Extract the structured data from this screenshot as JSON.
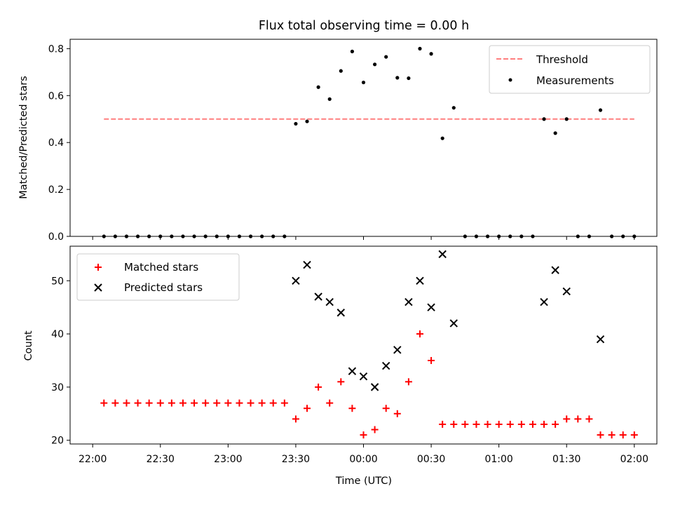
{
  "chart_data": [
    {
      "type": "scatter",
      "title": "Flux total observing time = 0.00 h",
      "ylabel": "Matched/Predicted stars",
      "xlabel": "",
      "ylim": [
        0,
        0.84
      ],
      "yticks": [
        0.0,
        0.2,
        0.4,
        0.6,
        0.8
      ],
      "yticklabels": [
        "0.0",
        "0.2",
        "0.4",
        "0.6",
        "0.8"
      ],
      "xlim_minutes_after_22_00": [
        -10,
        250
      ],
      "grid": false,
      "legend_placement": "top-right",
      "threshold": {
        "name": "Threshold",
        "value": 0.5,
        "x_start": "22:05",
        "x_end": "02:00",
        "color": "#ff7f7f"
      },
      "series": [
        {
          "name": "Measurements",
          "color": "#000000",
          "points": [
            [
              "22:05",
              0
            ],
            [
              "22:10",
              0
            ],
            [
              "22:15",
              0
            ],
            [
              "22:20",
              0
            ],
            [
              "22:25",
              0
            ],
            [
              "22:30",
              0
            ],
            [
              "22:35",
              0
            ],
            [
              "22:40",
              0
            ],
            [
              "22:45",
              0
            ],
            [
              "22:50",
              0
            ],
            [
              "22:55",
              0
            ],
            [
              "23:00",
              0
            ],
            [
              "23:05",
              0
            ],
            [
              "23:10",
              0
            ],
            [
              "23:15",
              0
            ],
            [
              "23:20",
              0
            ],
            [
              "23:25",
              0
            ],
            [
              "23:30",
              0.48
            ],
            [
              "23:35",
              0.49
            ],
            [
              "23:40",
              0.636
            ],
            [
              "23:45",
              0.585
            ],
            [
              "23:50",
              0.705
            ],
            [
              "23:55",
              0.788
            ],
            [
              "00:00",
              0.656
            ],
            [
              "00:05",
              0.733
            ],
            [
              "00:10",
              0.765
            ],
            [
              "00:15",
              0.676
            ],
            [
              "00:20",
              0.674
            ],
            [
              "00:25",
              0.8
            ],
            [
              "00:30",
              0.778
            ],
            [
              "00:35",
              0.418
            ],
            [
              "00:40",
              0.548
            ],
            [
              "00:45",
              0
            ],
            [
              "00:50",
              0
            ],
            [
              "00:55",
              0
            ],
            [
              "01:00",
              0
            ],
            [
              "01:05",
              0
            ],
            [
              "01:10",
              0
            ],
            [
              "01:15",
              0
            ],
            [
              "01:20",
              0.5
            ],
            [
              "01:25",
              0.44
            ],
            [
              "01:30",
              0.5
            ],
            [
              "01:35",
              0
            ],
            [
              "01:40",
              0
            ],
            [
              "01:45",
              0.538
            ],
            [
              "01:50",
              0
            ],
            [
              "01:55",
              0
            ],
            [
              "02:00",
              0
            ]
          ]
        }
      ]
    },
    {
      "type": "scatter",
      "title": "",
      "ylabel": "Count",
      "xlabel": "Time (UTC)",
      "ylim": [
        19.3,
        56.5
      ],
      "yticks": [
        20,
        30,
        40,
        50
      ],
      "yticklabels": [
        "20",
        "30",
        "40",
        "50"
      ],
      "xticks": [
        "22:00",
        "22:30",
        "23:00",
        "23:30",
        "00:00",
        "00:30",
        "01:00",
        "01:30",
        "02:00"
      ],
      "xlim_minutes_after_22_00": [
        -10,
        250
      ],
      "grid": false,
      "legend_placement": "top-left",
      "series": [
        {
          "name": "Matched stars",
          "marker": "plus",
          "color": "#ff0000",
          "points": [
            [
              "22:05",
              27
            ],
            [
              "22:10",
              27
            ],
            [
              "22:15",
              27
            ],
            [
              "22:20",
              27
            ],
            [
              "22:25",
              27
            ],
            [
              "22:30",
              27
            ],
            [
              "22:35",
              27
            ],
            [
              "22:40",
              27
            ],
            [
              "22:45",
              27
            ],
            [
              "22:50",
              27
            ],
            [
              "22:55",
              27
            ],
            [
              "23:00",
              27
            ],
            [
              "23:05",
              27
            ],
            [
              "23:10",
              27
            ],
            [
              "23:15",
              27
            ],
            [
              "23:20",
              27
            ],
            [
              "23:25",
              27
            ],
            [
              "23:30",
              24
            ],
            [
              "23:35",
              26
            ],
            [
              "23:40",
              30
            ],
            [
              "23:45",
              27
            ],
            [
              "23:50",
              31
            ],
            [
              "23:55",
              26
            ],
            [
              "00:00",
              21
            ],
            [
              "00:05",
              22
            ],
            [
              "00:10",
              26
            ],
            [
              "00:15",
              25
            ],
            [
              "00:20",
              31
            ],
            [
              "00:25",
              40
            ],
            [
              "00:30",
              35
            ],
            [
              "00:35",
              23
            ],
            [
              "00:40",
              23
            ],
            [
              "00:45",
              23
            ],
            [
              "00:50",
              23
            ],
            [
              "00:55",
              23
            ],
            [
              "01:00",
              23
            ],
            [
              "01:05",
              23
            ],
            [
              "01:10",
              23
            ],
            [
              "01:15",
              23
            ],
            [
              "01:20",
              23
            ],
            [
              "01:25",
              23
            ],
            [
              "01:30",
              24
            ],
            [
              "01:35",
              24
            ],
            [
              "01:40",
              24
            ],
            [
              "01:45",
              21
            ],
            [
              "01:50",
              21
            ],
            [
              "01:55",
              21
            ],
            [
              "02:00",
              21
            ]
          ]
        },
        {
          "name": "Predicted stars",
          "marker": "x",
          "color": "#000000",
          "points": [
            [
              "23:30",
              50
            ],
            [
              "23:35",
              53
            ],
            [
              "23:40",
              47
            ],
            [
              "23:45",
              46
            ],
            [
              "23:50",
              44
            ],
            [
              "23:55",
              33
            ],
            [
              "00:00",
              32
            ],
            [
              "00:05",
              30
            ],
            [
              "00:10",
              34
            ],
            [
              "00:15",
              37
            ],
            [
              "00:20",
              46
            ],
            [
              "00:25",
              50
            ],
            [
              "00:30",
              45
            ],
            [
              "00:35",
              55
            ],
            [
              "00:40",
              42
            ],
            [
              "01:20",
              46
            ],
            [
              "01:25",
              52
            ],
            [
              "01:30",
              48
            ],
            [
              "01:45",
              39
            ]
          ]
        }
      ]
    }
  ]
}
